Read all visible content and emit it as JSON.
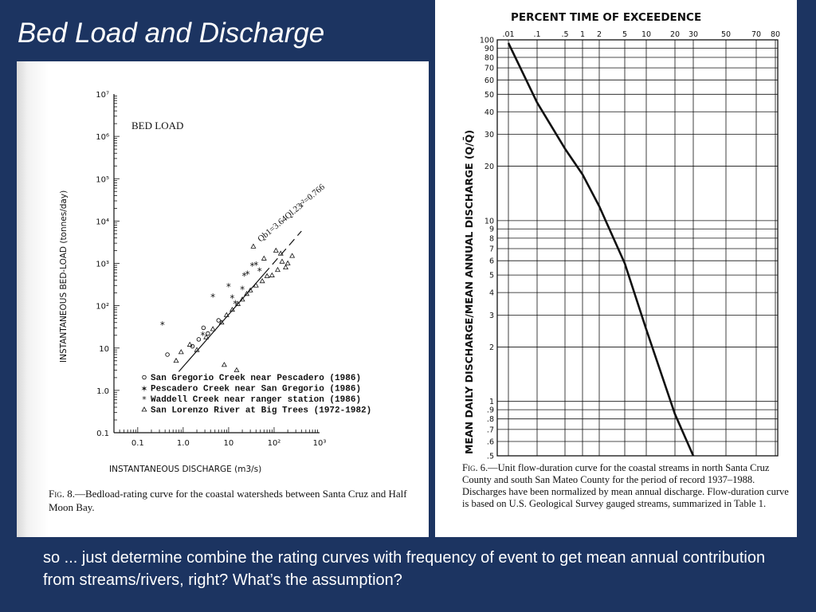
{
  "slide": {
    "title": "Bed Load and Discharge",
    "bottom_text": "so ... just determine combine the rating curves with frequency of event to get mean annual contribution from streams/rivers, right?  What’s the assumption?"
  },
  "left_figure": {
    "caption_fig": "Fig. 8.",
    "caption_text": "—Bedload-rating curve for the coastal watersheds between Santa Cruz and Half Moon Bay."
  },
  "right_figure": {
    "caption_fig": "Fig. 6.",
    "caption_text": "—Unit flow-duration curve for the coastal streams in north Santa Cruz County and south San Mateo County for the period of record 1937–1988. Discharges have been normalized by mean annual discharge. Flow-duration curve is based on U.S. Geological Survey gauged streams, summarized in Table 1."
  },
  "chart_data": [
    {
      "type": "scatter",
      "title": "BED LOAD",
      "xlabel": "INSTANTANEOUS DISCHARGE (m3/s)",
      "ylabel": "INSTANTANEOUS BED-LOAD (tonnes/day)",
      "x_scale": "log",
      "y_scale": "log",
      "xlim": [
        0.03,
        1000
      ],
      "ylim": [
        0.1,
        10000000
      ],
      "x_ticks": [
        "0.1",
        "1.0",
        "10",
        "10²",
        "10³"
      ],
      "y_ticks": [
        "0.1",
        "1.0",
        "10",
        "10²",
        "10³",
        "10⁴",
        "10⁵",
        "10⁶",
        "10⁷"
      ],
      "fit_label": "Qb1=3.64Ql.23",
      "r2_label": "r²=0.766",
      "fit": {
        "coefficient": 3.64,
        "exponent": 1.23,
        "x_range": [
          0.8,
          400
        ]
      },
      "series": [
        {
          "name": "San Gregorio Creek near Pescadero (1986)",
          "marker": "o",
          "x": [
            0.45,
            1.6,
            2.2,
            3.5,
            6.0,
            2.8
          ],
          "y": [
            7,
            11,
            16,
            22,
            45,
            30
          ]
        },
        {
          "name": "Pescadero Creek near San Gregorio (1986)",
          "marker": "*",
          "x": [
            0.35,
            4.5,
            2.7,
            10,
            22,
            40
          ],
          "y": [
            35,
            160,
            20,
            280,
            500,
            900
          ]
        },
        {
          "name": "Waddell Creek near ranger station (1986)",
          "marker": "*",
          "x": [
            12,
            20,
            14,
            26,
            33,
            48
          ],
          "y": [
            150,
            240,
            110,
            550,
            850,
            650
          ]
        },
        {
          "name": "San Lorenzo River at Big Trees (1972-1982)",
          "marker": "triangle",
          "x": [
            0.7,
            0.9,
            1.4,
            2.0,
            3.2,
            4.5,
            7,
            9,
            12,
            16,
            20,
            25,
            30,
            40,
            55,
            70,
            90,
            120,
            150,
            180,
            15,
            8,
            60,
            110,
            140,
            200,
            250,
            35
          ],
          "y": [
            5,
            8,
            12,
            9,
            18,
            28,
            40,
            60,
            80,
            110,
            140,
            190,
            230,
            300,
            380,
            500,
            520,
            700,
            1100,
            800,
            3,
            4,
            1300,
            2000,
            1700,
            1000,
            1500,
            2500
          ]
        }
      ]
    },
    {
      "type": "line",
      "title": "PERCENT TIME OF EXCEEDENCE",
      "xlabel": "PERCENT TIME OF EXCEEDENCE",
      "ylabel": "MEAN DAILY DISCHARGE/MEAN ANNUAL DISCHARGE (Q/Q̄)",
      "x_scale": "probability",
      "y_scale": "log",
      "x_ticks": [
        ".01",
        ".1",
        ".5",
        "1",
        "2",
        "5",
        "10",
        "20",
        "30",
        "50",
        "70",
        "80"
      ],
      "y_ticks": [
        "100",
        "90",
        "80",
        "70",
        "60",
        "50",
        "40",
        "30",
        "20",
        "10",
        "9",
        "8",
        "7",
        "6",
        "5",
        "4",
        "3",
        "2",
        "1",
        ".9",
        ".8",
        ".7",
        ".6",
        ".5"
      ],
      "ylim": [
        0.5,
        100
      ],
      "series": [
        {
          "name": "",
          "x": [
            0.01,
            0.1,
            0.5,
            1,
            2,
            5,
            10,
            20,
            30
          ],
          "y": [
            96,
            45,
            25,
            18,
            12,
            5.8,
            2.5,
            0.85,
            0.5
          ]
        }
      ]
    }
  ]
}
